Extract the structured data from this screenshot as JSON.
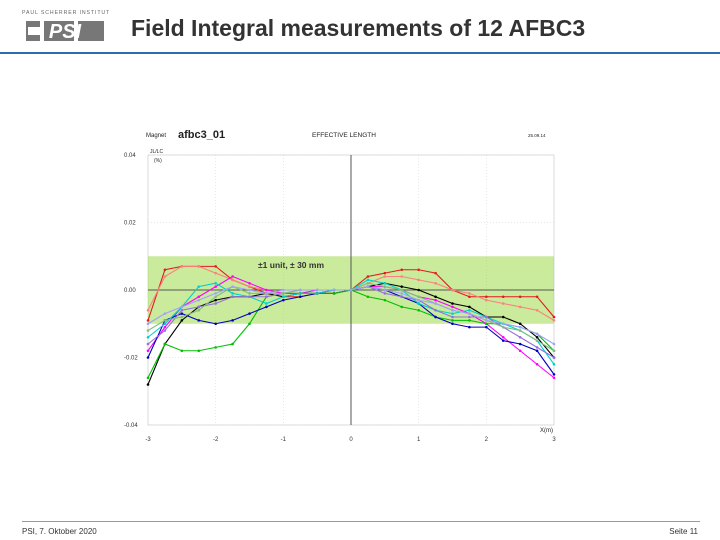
{
  "header": {
    "logo_text": "PAUL SCHERRER INSTITUT",
    "logo_mark": "PSI",
    "title": "Field Integral measurements of 12 AFBC3"
  },
  "footer": {
    "left": "PSI, 7. Oktober 2020",
    "right": "Seite 11"
  },
  "chart_data": {
    "type": "line",
    "magnet_label": "Magnet",
    "magnet_name": "afbc3_01",
    "plot_title": "EFFECTIVE LENGTH",
    "date_label": "25.09.14",
    "ylabel_line1": "JL/LC",
    "ylabel_line2": "(%)",
    "xlabel": "X(m)",
    "band_label": "±1 unit, ± 30 mm",
    "band": [
      -0.01,
      0.01
    ],
    "xlim": [
      -3,
      3
    ],
    "ylim": [
      -0.04,
      0.04
    ],
    "xticks": [
      -3,
      -2,
      -1,
      0,
      1,
      2,
      3
    ],
    "xtick_labels": [
      "-3",
      "-2",
      "-1",
      "0",
      "1",
      "2",
      "3"
    ],
    "yticks": [
      0.04,
      0.02,
      0.0,
      -0.02,
      -0.04
    ],
    "ytick_labels": [
      "0.04",
      "0.02",
      "0.00",
      "-0.02",
      "-0.04"
    ],
    "grid": true,
    "x": [
      -3,
      -2.75,
      -2.5,
      -2.25,
      -2,
      -1.75,
      -1.5,
      -1.25,
      -1,
      -0.75,
      -0.5,
      -0.25,
      0,
      0.25,
      0.5,
      0.75,
      1,
      1.25,
      1.5,
      1.75,
      2,
      2.25,
      2.5,
      2.75,
      3
    ],
    "series": [
      {
        "color": "#e41a1c",
        "values": [
          -0.009,
          0.006,
          0.007,
          0.007,
          0.007,
          0.003,
          0.001,
          -0.001,
          -0.002,
          -0.002,
          -0.001,
          -0.001,
          0.0,
          0.004,
          0.005,
          0.006,
          0.006,
          0.005,
          0.0,
          -0.002,
          -0.002,
          -0.002,
          -0.002,
          -0.002,
          -0.008
        ]
      },
      {
        "color": "#ff7f7f",
        "values": [
          -0.006,
          0.004,
          0.007,
          0.007,
          0.005,
          0.003,
          0.001,
          0.0,
          -0.001,
          -0.001,
          -0.001,
          0.0,
          0.0,
          0.002,
          0.004,
          0.004,
          0.003,
          0.002,
          0.0,
          -0.001,
          -0.003,
          -0.004,
          -0.005,
          -0.006,
          -0.009
        ]
      },
      {
        "color": "#ff00ff",
        "values": [
          -0.018,
          -0.011,
          -0.005,
          -0.002,
          0.001,
          0.004,
          0.002,
          0.0,
          -0.001,
          -0.001,
          0.0,
          0.0,
          0.0,
          0.001,
          0.001,
          0.0,
          -0.002,
          -0.003,
          -0.005,
          -0.007,
          -0.01,
          -0.014,
          -0.018,
          -0.022,
          -0.026
        ]
      },
      {
        "color": "#000000",
        "values": [
          -0.028,
          -0.016,
          -0.009,
          -0.005,
          -0.003,
          -0.002,
          -0.002,
          -0.001,
          -0.002,
          -0.001,
          -0.001,
          -0.001,
          0.0,
          0.001,
          0.002,
          0.001,
          0.0,
          -0.002,
          -0.004,
          -0.005,
          -0.008,
          -0.008,
          -0.01,
          -0.014,
          -0.02
        ]
      },
      {
        "color": "#00c000",
        "values": [
          -0.026,
          -0.016,
          -0.018,
          -0.018,
          -0.017,
          -0.016,
          -0.01,
          -0.002,
          -0.001,
          -0.001,
          -0.001,
          -0.001,
          0.0,
          -0.002,
          -0.003,
          -0.005,
          -0.006,
          -0.008,
          -0.009,
          -0.009,
          -0.01,
          -0.01,
          -0.011,
          -0.013,
          -0.018
        ]
      },
      {
        "color": "#0000c0",
        "values": [
          -0.02,
          -0.009,
          -0.007,
          -0.009,
          -0.01,
          -0.009,
          -0.007,
          -0.005,
          -0.003,
          -0.002,
          -0.001,
          0.0,
          0.0,
          0.001,
          0.0,
          -0.002,
          -0.004,
          -0.008,
          -0.01,
          -0.011,
          -0.011,
          -0.015,
          -0.016,
          -0.018,
          -0.025
        ]
      },
      {
        "color": "#00d0d0",
        "values": [
          -0.014,
          -0.01,
          -0.005,
          0.001,
          0.002,
          -0.001,
          -0.002,
          -0.004,
          -0.002,
          -0.001,
          -0.001,
          0.0,
          0.0,
          0.003,
          0.002,
          0.0,
          -0.004,
          -0.006,
          -0.007,
          -0.006,
          -0.008,
          -0.01,
          -0.012,
          -0.015,
          -0.022
        ]
      },
      {
        "color": "#9370db",
        "values": [
          -0.016,
          -0.012,
          -0.006,
          -0.005,
          -0.004,
          -0.002,
          -0.002,
          -0.002,
          -0.001,
          0.0,
          0.0,
          0.0,
          0.0,
          0.001,
          -0.001,
          -0.002,
          -0.003,
          -0.006,
          -0.008,
          -0.008,
          -0.008,
          -0.011,
          -0.014,
          -0.017,
          -0.02
        ]
      },
      {
        "color": "#7fbf7f",
        "values": [
          -0.012,
          -0.009,
          -0.008,
          -0.006,
          -0.002,
          0.001,
          -0.001,
          -0.001,
          -0.001,
          0.0,
          0.0,
          0.0,
          0.0,
          0.002,
          0.001,
          0.0,
          -0.002,
          -0.004,
          -0.006,
          -0.007,
          -0.009,
          -0.011,
          -0.012,
          -0.015,
          -0.018
        ]
      },
      {
        "color": "#a0a0ff",
        "values": [
          -0.01,
          -0.007,
          -0.005,
          -0.003,
          -0.001,
          0.001,
          0.0,
          -0.001,
          0.0,
          0.0,
          0.0,
          0.0,
          0.0,
          0.001,
          0.0,
          -0.001,
          -0.003,
          -0.004,
          -0.006,
          -0.007,
          -0.009,
          -0.01,
          -0.011,
          -0.013,
          -0.016
        ]
      }
    ]
  }
}
